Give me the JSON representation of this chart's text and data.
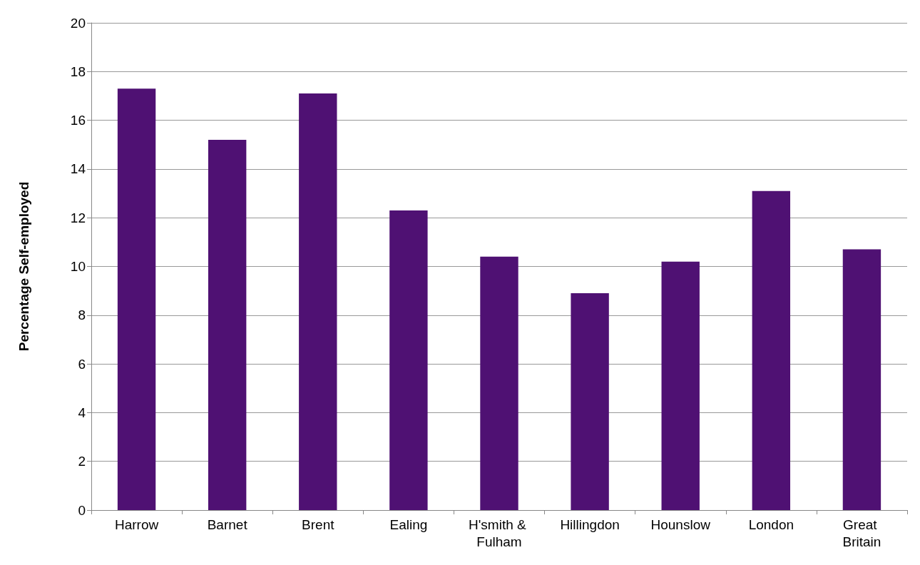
{
  "chart_data": {
    "type": "bar",
    "ylabel": "Percentage Self-employed",
    "categories": [
      "Harrow",
      "Barnet",
      "Brent",
      "Ealing",
      "H'smith & Fulham",
      "Hillingdon",
      "Hounslow",
      "London",
      "Great Britain"
    ],
    "values": [
      17.3,
      15.2,
      17.1,
      12.3,
      10.4,
      8.9,
      10.2,
      13.1,
      10.7
    ],
    "color": "#4f1173",
    "ylim": [
      0,
      20
    ],
    "yticks": [
      0,
      2,
      4,
      6,
      8,
      10,
      12,
      14,
      16,
      18,
      20
    ],
    "grid": "y"
  }
}
